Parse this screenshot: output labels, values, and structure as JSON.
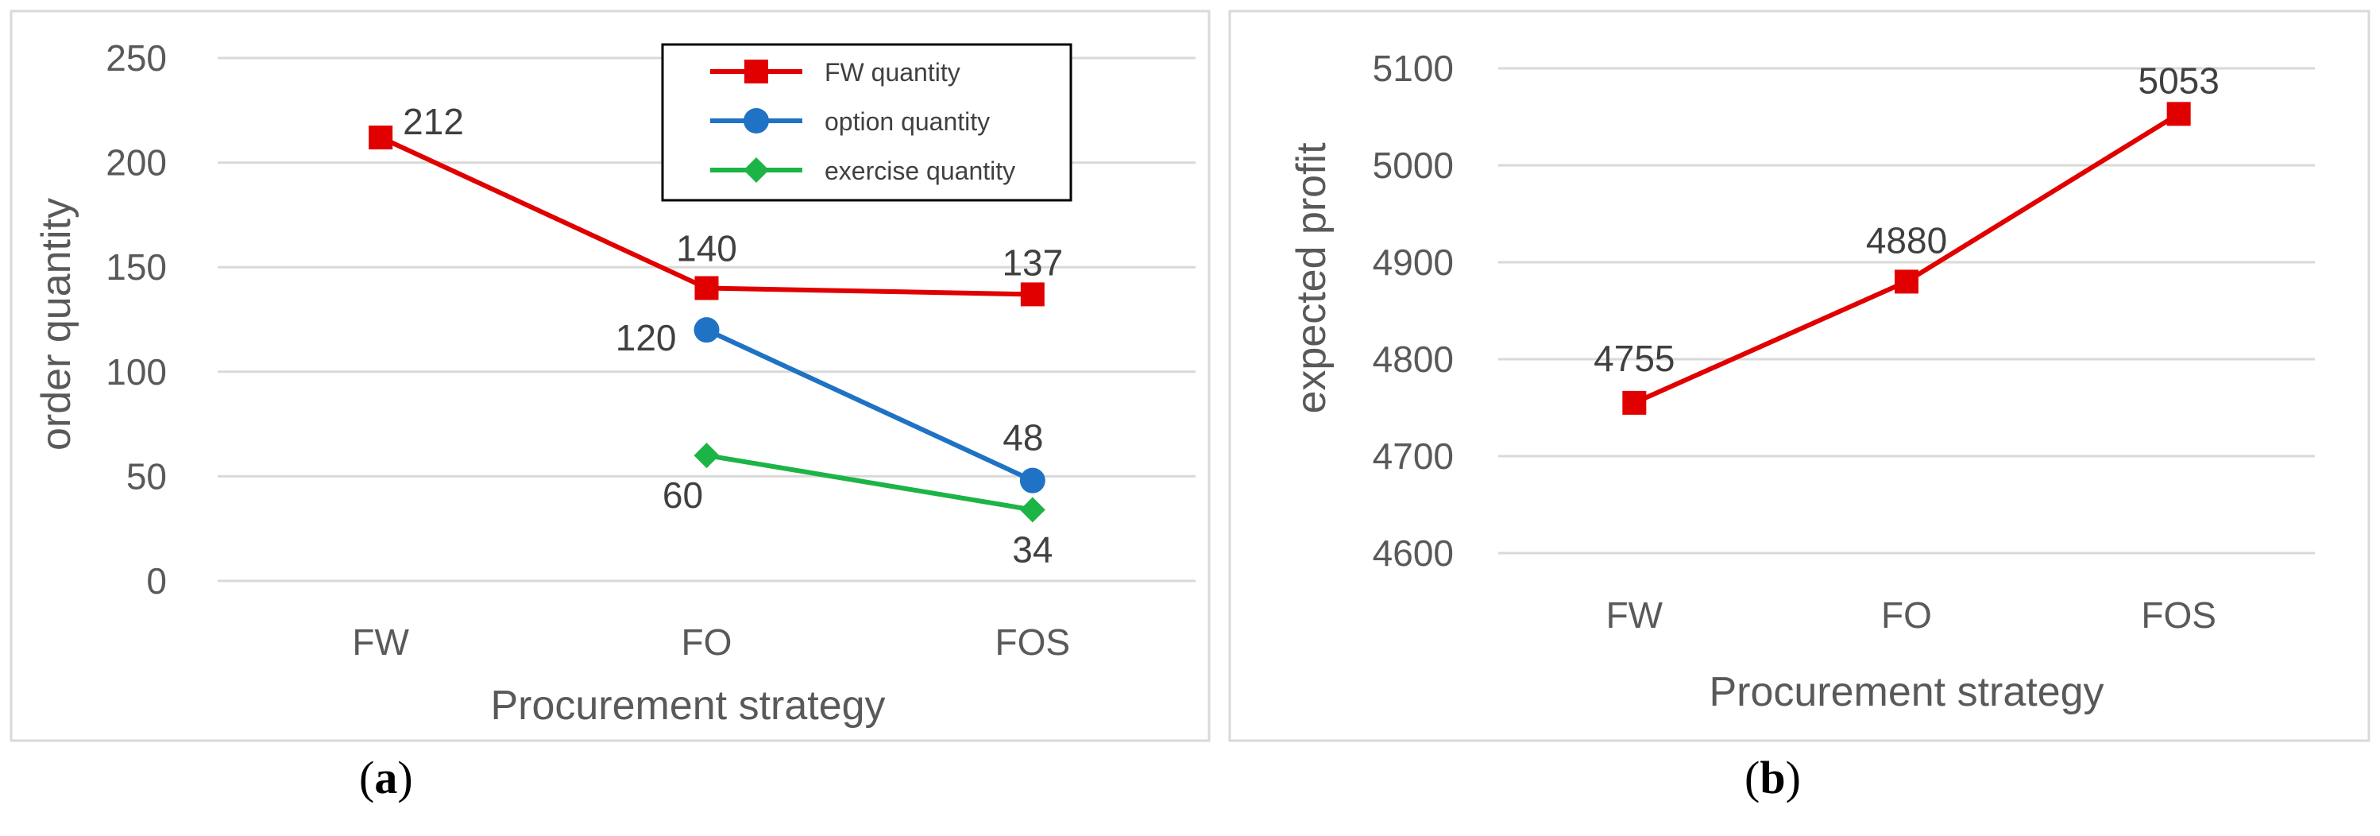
{
  "chart_data": [
    {
      "type": "line",
      "panel_label": "a",
      "categories": [
        "FW",
        "FO",
        "FOS"
      ],
      "xlabel": "Procurement strategy",
      "ylabel": "order quantity",
      "ylim": [
        0,
        250
      ],
      "yticks": [
        "0",
        "50",
        "100",
        "150",
        "200",
        "250"
      ],
      "grid": "horizontal",
      "legend_position": "top-right",
      "series": [
        {
          "name": "FW quantity",
          "color": "#E00000",
          "marker": "square",
          "values": [
            212,
            140,
            137
          ],
          "labels": [
            "212",
            "140",
            "137"
          ]
        },
        {
          "name": "option quantity",
          "color": "#1F72C4",
          "marker": "circle",
          "values": [
            null,
            120,
            48
          ],
          "labels": [
            "",
            "120",
            "48"
          ]
        },
        {
          "name": "exercise quantity",
          "color": "#1DB446",
          "marker": "diamond",
          "values": [
            null,
            60,
            34
          ],
          "labels": [
            "",
            "60",
            "34"
          ]
        }
      ]
    },
    {
      "type": "line",
      "panel_label": "b",
      "categories": [
        "FW",
        "FO",
        "FOS"
      ],
      "xlabel": "Procurement strategy",
      "ylabel": "expected profit",
      "ylim": [
        4600,
        5100
      ],
      "yticks": [
        "4600",
        "4700",
        "4800",
        "4900",
        "5000",
        "5100"
      ],
      "grid": "horizontal",
      "series": [
        {
          "color": "#E00000",
          "marker": "square",
          "values": [
            4755,
            4880,
            5053
          ],
          "labels": [
            "4755",
            "4880",
            "5053"
          ]
        }
      ]
    }
  ]
}
